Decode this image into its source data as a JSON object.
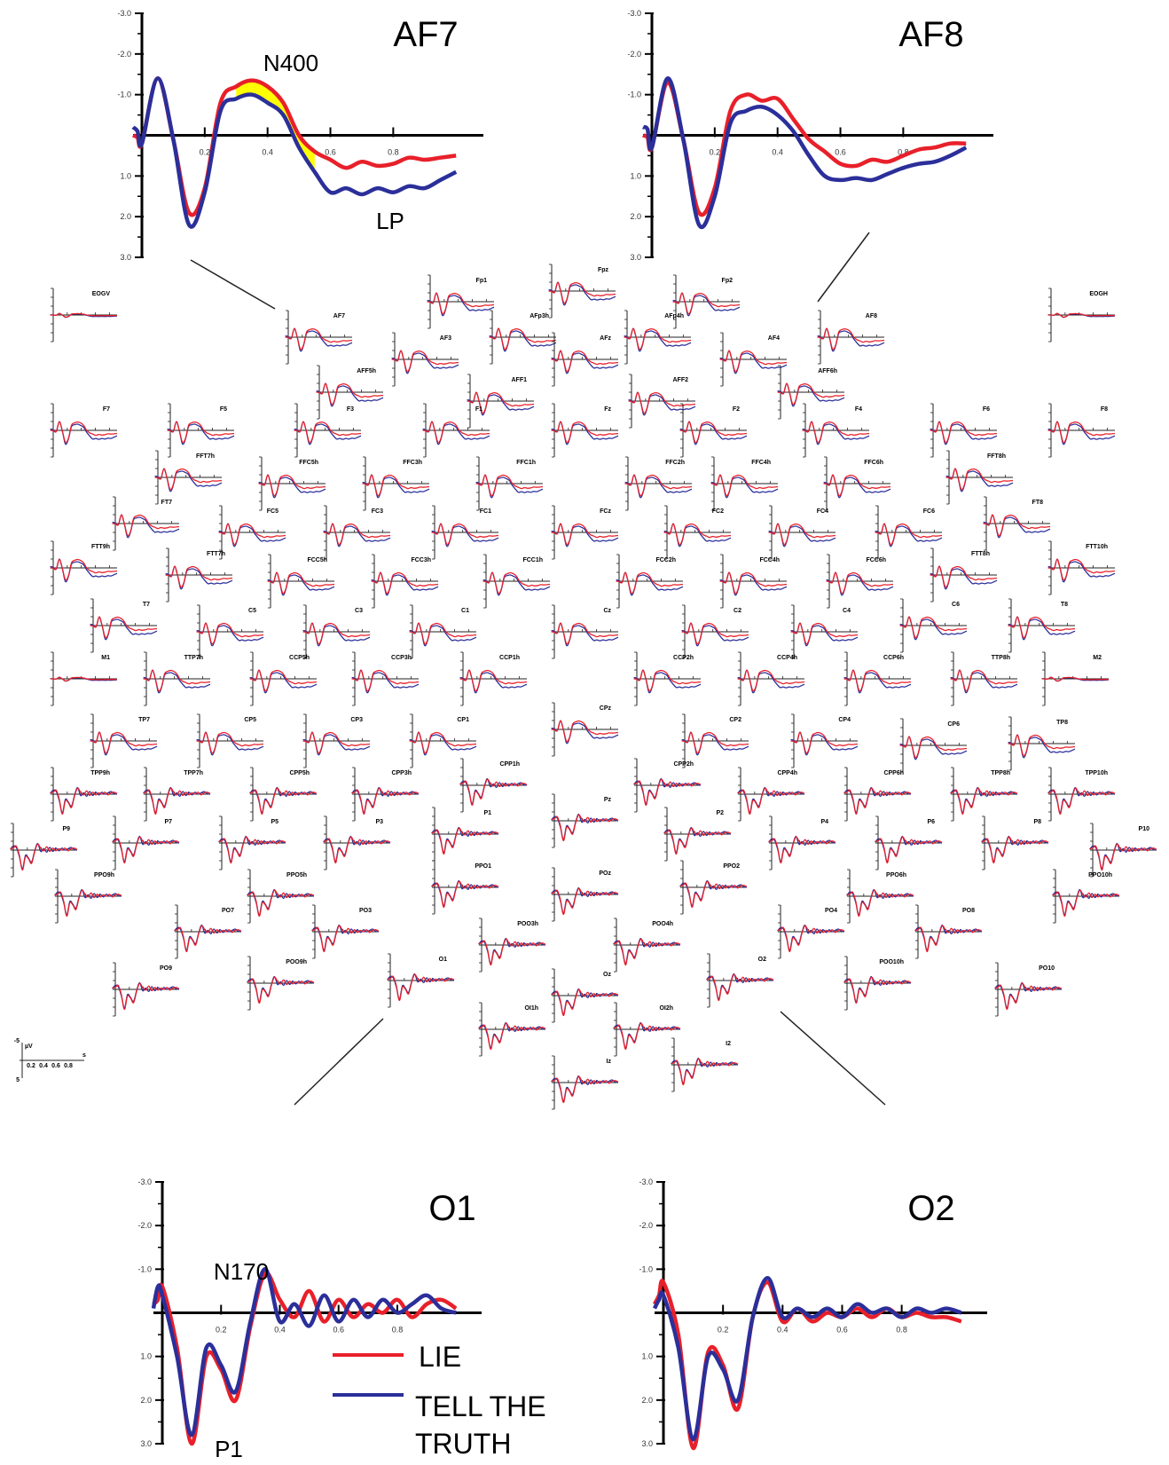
{
  "chart_data": {
    "type": "line",
    "legend": {
      "placement": "bottom-center",
      "entries": [
        {
          "name": "LIE",
          "color": "#e8202a"
        },
        {
          "name": "TELL THE TRUTH",
          "name_lines": [
            "TELL THE",
            "TRUTH"
          ],
          "color": "#2b2f9a"
        }
      ]
    },
    "y_inverted": true,
    "axis": {
      "x_ticks": [
        "0.2",
        "0.4",
        "0.6",
        "0.8"
      ],
      "y_ticks": [
        "-3.0",
        "-2.0",
        "-1.0",
        "1.0",
        "2.0",
        "3.0"
      ],
      "xlim": [
        -0.1,
        1.0
      ],
      "ylim": [
        -3.0,
        3.0
      ]
    },
    "panels": [
      {
        "title": "AF7",
        "annotations": [
          {
            "text": "N400",
            "x": 0.4,
            "y": -1.85
          },
          {
            "text": "LP",
            "x": 0.62,
            "y": 2.25
          }
        ],
        "highlight_region": {
          "x_start": 0.3,
          "x_end": 0.55,
          "color": "#ffff00"
        },
        "series": [
          {
            "name": "LIE",
            "x": [
              -0.1,
              -0.05,
              0.0,
              0.05,
              0.1,
              0.15,
              0.2,
              0.25,
              0.3,
              0.35,
              0.4,
              0.45,
              0.5,
              0.55,
              0.6,
              0.65,
              0.7,
              0.75,
              0.8,
              0.85,
              0.9,
              0.95,
              1.0
            ],
            "y": [
              0.0,
              0.05,
              0.2,
              -1.4,
              0.1,
              1.9,
              1.3,
              -0.8,
              -1.2,
              -1.35,
              -1.2,
              -0.8,
              0.0,
              0.4,
              0.6,
              0.8,
              0.65,
              0.75,
              0.7,
              0.55,
              0.6,
              0.55,
              0.5
            ]
          },
          {
            "name": "TELL THE TRUTH",
            "x": [
              -0.1,
              -0.05,
              0.0,
              0.05,
              0.1,
              0.15,
              0.2,
              0.25,
              0.3,
              0.35,
              0.4,
              0.45,
              0.5,
              0.55,
              0.6,
              0.65,
              0.7,
              0.75,
              0.8,
              0.85,
              0.9,
              0.95,
              1.0
            ],
            "y": [
              -0.2,
              -0.1,
              0.2,
              -1.4,
              0.1,
              2.2,
              1.4,
              -0.6,
              -0.9,
              -1.0,
              -0.8,
              -0.5,
              0.3,
              0.9,
              1.4,
              1.3,
              1.45,
              1.3,
              1.4,
              1.25,
              1.3,
              1.1,
              0.9
            ]
          }
        ]
      },
      {
        "title": "AF8",
        "annotations": [],
        "series": [
          {
            "name": "LIE",
            "x": [
              -0.1,
              -0.05,
              0.0,
              0.05,
              0.1,
              0.15,
              0.2,
              0.25,
              0.3,
              0.35,
              0.4,
              0.45,
              0.5,
              0.55,
              0.6,
              0.65,
              0.7,
              0.75,
              0.8,
              0.85,
              0.9,
              0.95,
              1.0
            ],
            "y": [
              0.0,
              0.05,
              0.3,
              -1.3,
              0.1,
              1.9,
              1.3,
              -0.6,
              -1.0,
              -0.85,
              -0.9,
              -0.4,
              0.1,
              0.4,
              0.7,
              0.75,
              0.6,
              0.65,
              0.5,
              0.35,
              0.3,
              0.2,
              0.2
            ]
          },
          {
            "name": "TELL THE TRUTH",
            "x": [
              -0.1,
              -0.05,
              0.0,
              0.05,
              0.1,
              0.15,
              0.2,
              0.25,
              0.3,
              0.35,
              0.4,
              0.45,
              0.5,
              0.55,
              0.6,
              0.65,
              0.7,
              0.75,
              0.8,
              0.85,
              0.9,
              0.95,
              1.0
            ],
            "y": [
              -0.2,
              -0.15,
              0.3,
              -1.4,
              0.1,
              2.2,
              1.5,
              -0.3,
              -0.6,
              -0.7,
              -0.5,
              -0.1,
              0.5,
              1.0,
              1.1,
              1.05,
              1.1,
              0.95,
              0.8,
              0.7,
              0.65,
              0.5,
              0.3
            ]
          }
        ]
      },
      {
        "title": "O1",
        "annotations": [
          {
            "text": "N170",
            "x": 0.18,
            "y": -0.9
          },
          {
            "text": "P1",
            "x": 0.1,
            "y": 3.4
          }
        ],
        "series": [
          {
            "name": "LIE",
            "x": [
              -0.1,
              -0.05,
              0.0,
              0.05,
              0.1,
              0.15,
              0.2,
              0.25,
              0.3,
              0.35,
              0.4,
              0.45,
              0.5,
              0.55,
              0.6,
              0.65,
              0.7,
              0.75,
              0.8,
              0.85,
              0.9,
              0.95,
              1.0
            ],
            "y": [
              -0.2,
              -0.3,
              -0.6,
              0.8,
              3.0,
              1.0,
              1.3,
              2.0,
              0.3,
              -0.9,
              -0.3,
              0.1,
              -0.5,
              0.2,
              -0.3,
              0.1,
              -0.2,
              0.0,
              -0.3,
              0.1,
              -0.2,
              -0.3,
              -0.1
            ]
          },
          {
            "name": "TELL THE TRUTH",
            "x": [
              -0.1,
              -0.05,
              0.0,
              0.05,
              0.1,
              0.15,
              0.2,
              0.25,
              0.3,
              0.35,
              0.4,
              0.45,
              0.5,
              0.55,
              0.6,
              0.65,
              0.7,
              0.75,
              0.8,
              0.85,
              0.9,
              0.95,
              1.0
            ],
            "y": [
              -0.1,
              -0.6,
              -0.4,
              1.0,
              2.8,
              0.8,
              1.2,
              1.8,
              0.2,
              -1.0,
              0.2,
              -0.2,
              0.3,
              -0.4,
              0.2,
              -0.3,
              0.1,
              -0.3,
              0.0,
              -0.2,
              -0.4,
              -0.1,
              0.0
            ]
          }
        ]
      },
      {
        "title": "O2",
        "annotations": [],
        "series": [
          {
            "name": "LIE",
            "x": [
              -0.1,
              -0.05,
              0.0,
              0.05,
              0.1,
              0.15,
              0.2,
              0.25,
              0.3,
              0.35,
              0.4,
              0.45,
              0.5,
              0.55,
              0.6,
              0.65,
              0.7,
              0.75,
              0.8,
              0.85,
              0.9,
              0.95,
              1.0
            ],
            "y": [
              -0.2,
              -0.4,
              -0.7,
              0.5,
              3.1,
              0.9,
              1.2,
              2.2,
              0.1,
              -0.7,
              0.2,
              -0.1,
              0.2,
              0.0,
              0.1,
              -0.1,
              0.1,
              -0.1,
              0.1,
              0.0,
              0.1,
              0.1,
              0.2
            ]
          },
          {
            "name": "TELL THE TRUTH",
            "x": [
              -0.1,
              -0.05,
              0.0,
              0.05,
              0.1,
              0.15,
              0.2,
              0.25,
              0.3,
              0.35,
              0.4,
              0.45,
              0.5,
              0.55,
              0.6,
              0.65,
              0.7,
              0.75,
              0.8,
              0.85,
              0.9,
              0.95,
              1.0
            ],
            "y": [
              -0.1,
              -0.3,
              -0.4,
              0.8,
              2.9,
              1.0,
              1.3,
              2.0,
              0.1,
              -0.8,
              0.1,
              -0.1,
              0.1,
              -0.1,
              0.1,
              -0.2,
              0.0,
              -0.1,
              0.1,
              -0.1,
              0.0,
              -0.1,
              0.0
            ]
          }
        ]
      }
    ],
    "scalp_map": {
      "scale_axis_labels": [
        "-5",
        "µV",
        "0.2",
        "0.4",
        "0.6",
        "0.8",
        "s",
        "5"
      ],
      "electrodes": [
        "EOGV",
        "Fp1",
        "Fpz",
        "Fp2",
        "EOGH",
        "AF7",
        "AF3",
        "AFp3h",
        "AFz",
        "AFp4h",
        "AF4",
        "AF8",
        "AFF5h",
        "AFF1",
        "AFF2",
        "AFF6h",
        "F7",
        "F5",
        "F3",
        "F1",
        "Fz",
        "F2",
        "F4",
        "F6",
        "F8",
        "FFT7h",
        "FFC5h",
        "FFC3h",
        "FFC1h",
        "FFC2h",
        "FFC4h",
        "FFC6h",
        "FFT8h",
        "FT7",
        "FC5",
        "FC3",
        "FC1",
        "FCz",
        "FC2",
        "FC4",
        "FC6",
        "FT8",
        "FTT7h",
        "FCC5h",
        "FCC3h",
        "FCC1h",
        "FCC2h",
        "FCC4h",
        "FCC6h",
        "FTT8h",
        "FTT10h",
        "FTT9h",
        "T7",
        "C5",
        "C3",
        "C1",
        "Cz",
        "C2",
        "C4",
        "C6",
        "T8",
        "M1",
        "TTP7h",
        "CCP5h",
        "CCP3h",
        "CCP1h",
        "CCP2h",
        "CCP4h",
        "CCP6h",
        "TTP8h",
        "M2",
        "TP7",
        "CP5",
        "CP3",
        "CP1",
        "CPz",
        "CP2",
        "CP4",
        "CP6",
        "TP8",
        "TPP9h",
        "TPP7h",
        "CPP5h",
        "CPP3h",
        "CPP1h",
        "CPP2h",
        "CPP4h",
        "CPP6h",
        "TPP8h",
        "TPP10h",
        "P9",
        "P7",
        "P5",
        "P3",
        "P1",
        "Pz",
        "P2",
        "P4",
        "P6",
        "P8",
        "P10",
        "PPO9h",
        "PPO5h",
        "PPO1",
        "POz",
        "PPO2",
        "PPO6h",
        "PPO10h",
        "PO7",
        "PO3",
        "POO3h",
        "POO4h",
        "PO4",
        "PO8",
        "PO9",
        "POO9h",
        "O1",
        "Oz",
        "O2",
        "POO10h",
        "PO10",
        "OI1h",
        "OI2h",
        "Iz",
        "I2"
      ]
    }
  }
}
